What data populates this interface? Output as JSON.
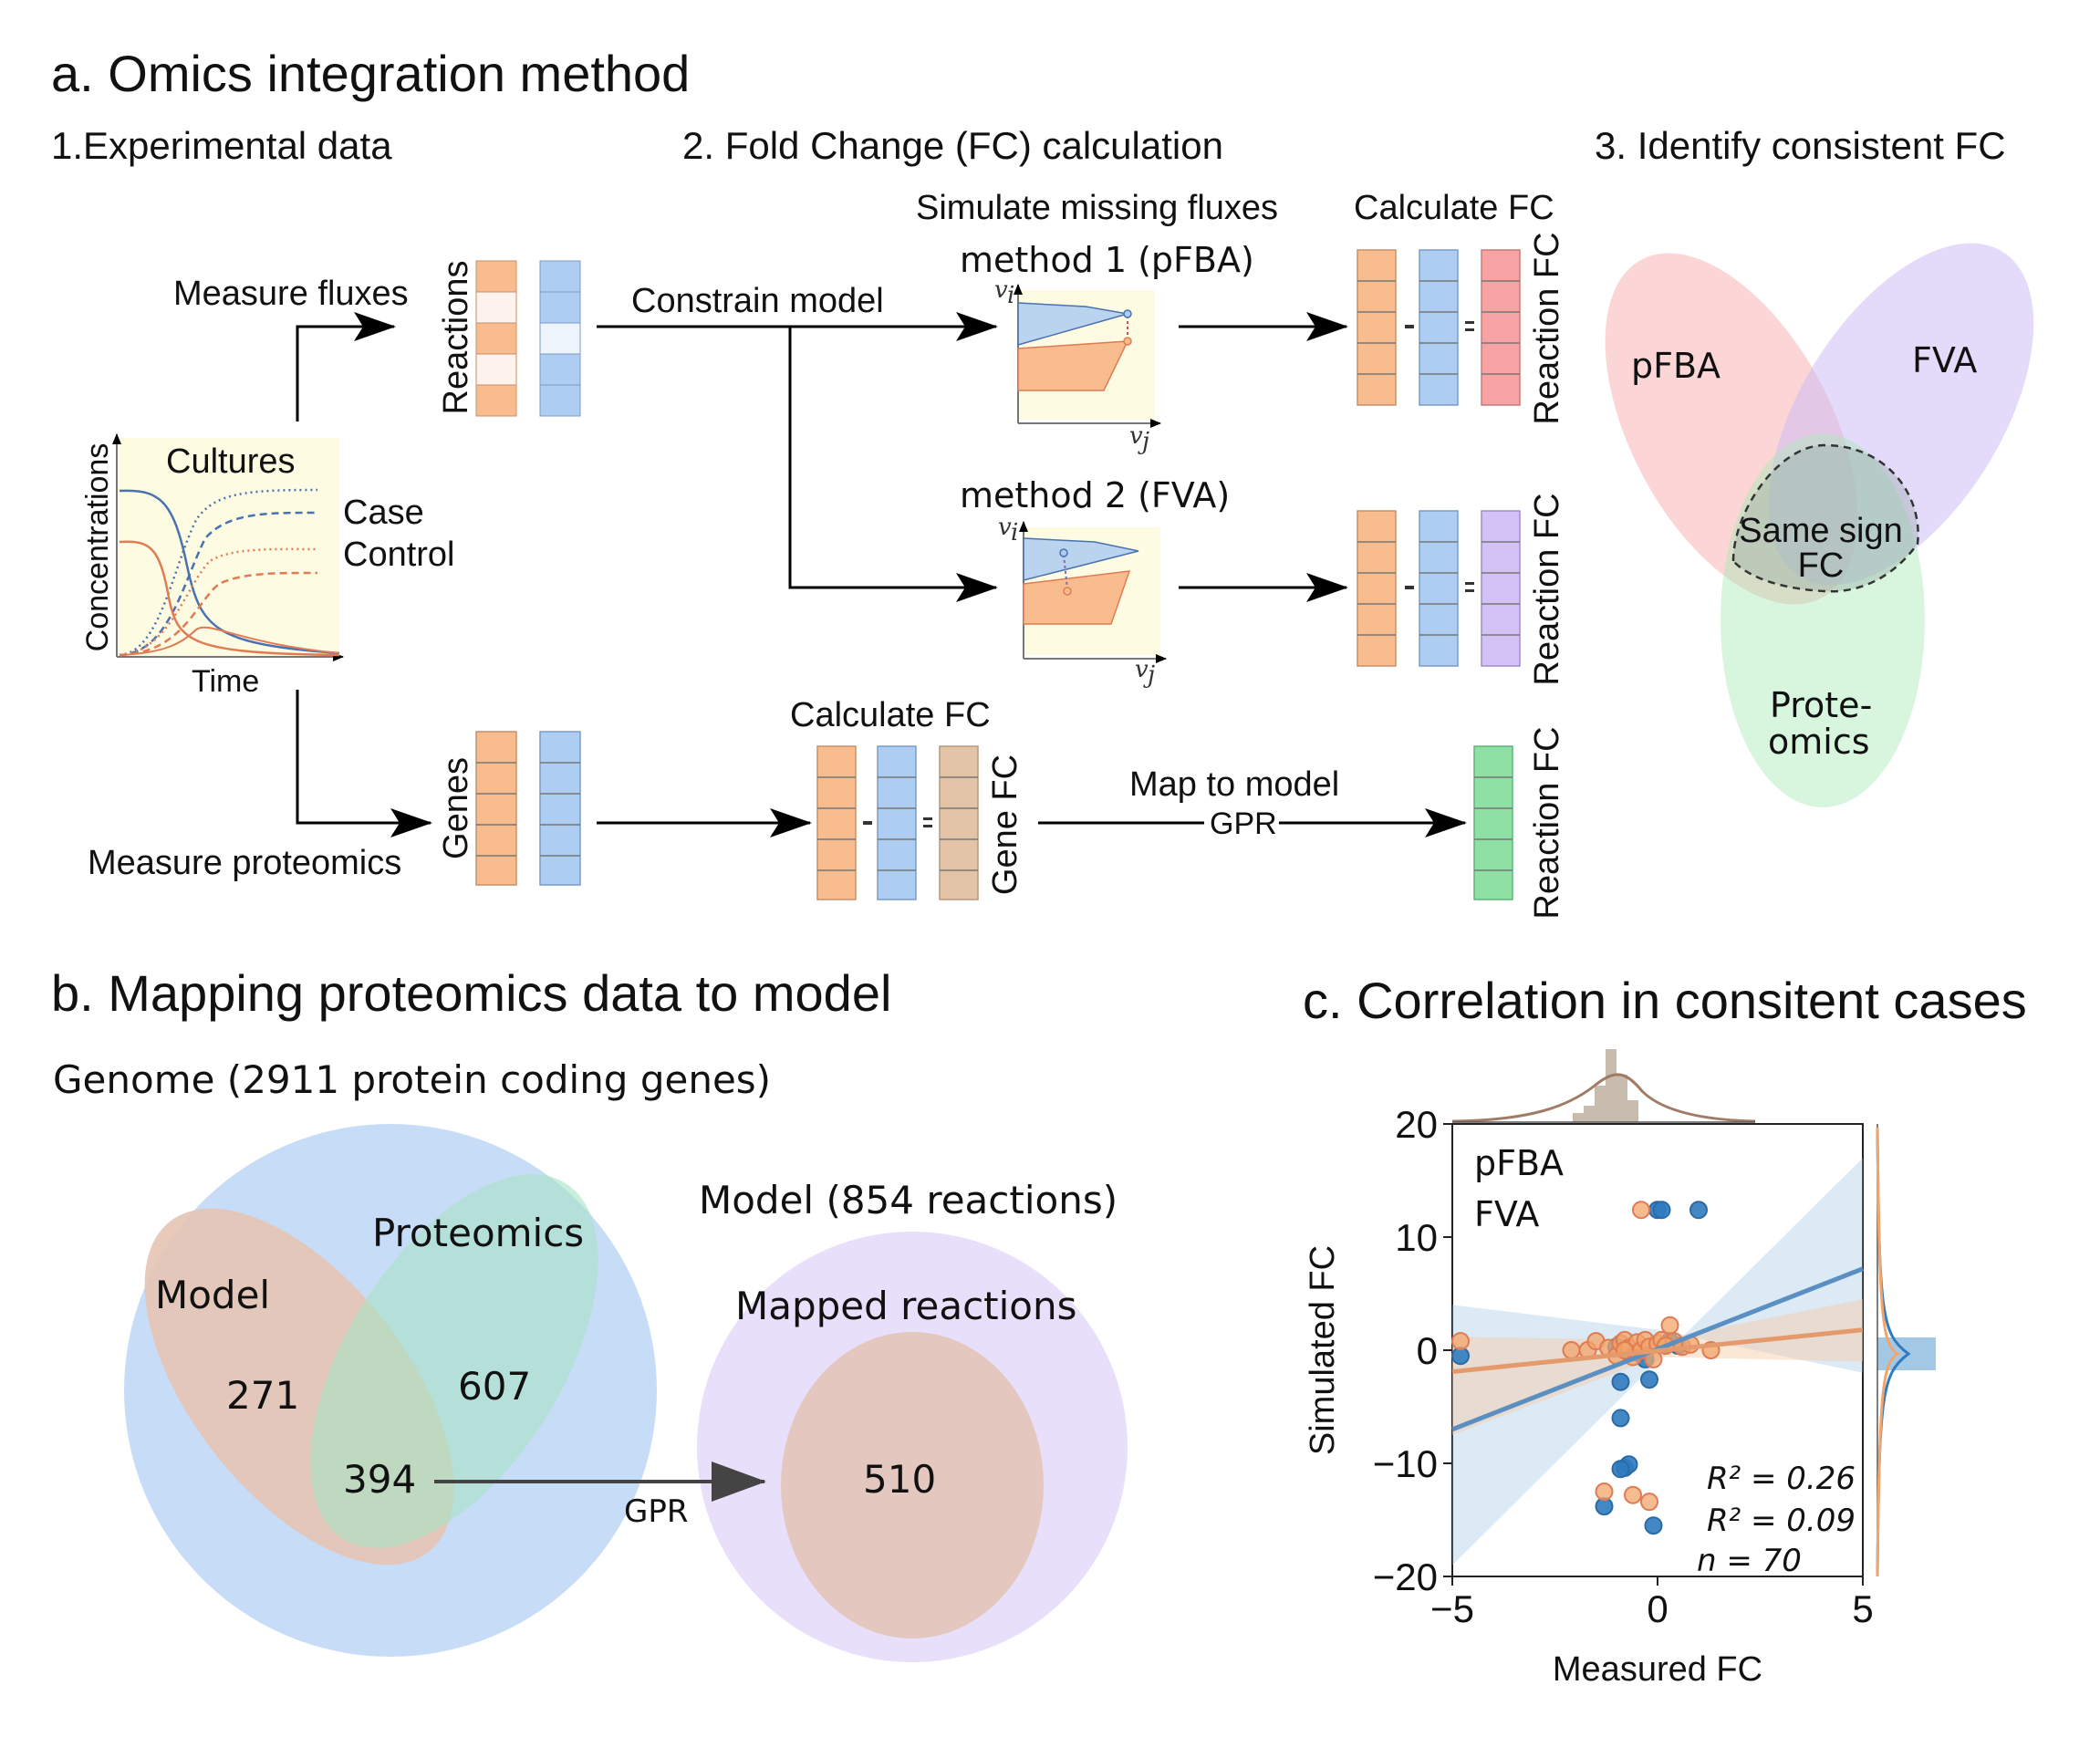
{
  "panel_a": {
    "title": "a. Omics integration method",
    "step1": "1.Experimental data",
    "step2": "2. Fold Change (FC) calculation",
    "step3": "3. Identify consistent FC",
    "measure_fluxes": "Measure fluxes",
    "measure_proteomics": "Measure proteomics",
    "constrain_model": "Constrain model",
    "simulate_missing": "Simulate missing fluxes",
    "calc_fc": "Calculate FC",
    "calc_fc_2": "Calculate FC",
    "method1": "method 1 (pFBA)",
    "method2": "method 2 (FVA)",
    "reactions": "Reactions",
    "genes": "Genes",
    "reaction_fc_1": "Reaction FC",
    "reaction_fc_2": "Reaction FC",
    "reaction_fc_3": "Reaction FC",
    "gene_fc": "Gene FC",
    "map_to_model": "Map to model",
    "gpr": "GPR",
    "cultures": "Cultures",
    "case": "Case",
    "control": "Control",
    "concentrations": "Concentrations",
    "time": "Time",
    "vi": "v",
    "vi_sub": "i",
    "vj": "v",
    "vj_sub": "j",
    "venn_pfba": "pFBA",
    "venn_fva": "FVA",
    "venn_prot_1": "Prote-",
    "venn_prot_2": "omics",
    "same_sign_1": "Same sign",
    "same_sign_2": "FC",
    "colors": {
      "case": "#e07b54",
      "control": "#4a72b0",
      "orange_box": "#f9bc8f",
      "blue_box": "#aecdf2",
      "red_box": "#f7a3a3",
      "purple_box": "#d4c2f7",
      "tan_box": "#e4c4a6",
      "green_box": "#8ee0a4",
      "panel_bg": "#fdfbe2"
    }
  },
  "panel_b": {
    "title": "b. Mapping proteomics data to model",
    "genome": "Genome (2911 protein coding genes)",
    "model_label": "Model",
    "proteomics_label": "Proteomics",
    "model_reactions": "Model (854 reactions)",
    "mapped_reactions": "Mapped reactions",
    "n_model_only": "271",
    "n_proteomics_only": "607",
    "n_overlap": "394",
    "n_mapped": "510",
    "gpr": "GPR"
  },
  "panel_c": {
    "title": "c. Correlation in consitent cases",
    "chart_data": {
      "type": "scatter",
      "xlabel": "Measured FC",
      "ylabel": "Simulated FC",
      "xlim": [
        -5,
        5
      ],
      "ylim": [
        -20,
        20
      ],
      "xticks": [
        "−5",
        "0",
        "5"
      ],
      "yticks": [
        "20",
        "10",
        "0",
        "−10",
        "−20"
      ],
      "series": [
        {
          "name": "pFBA",
          "color": "#2f7bbf",
          "r2_label": "R² = 0.26",
          "regression": {
            "x": [
              -5,
              5
            ],
            "y": [
              -7.0,
              7.2
            ]
          },
          "points": [
            [
              -4.8,
              -0.5
            ],
            [
              -1.3,
              -13.8
            ],
            [
              -0.9,
              -2.8
            ],
            [
              -0.9,
              -6.0
            ],
            [
              -0.8,
              -10.4
            ],
            [
              -0.7,
              -10.1
            ],
            [
              -0.9,
              -10.5
            ],
            [
              -0.3,
              -0.8
            ],
            [
              0.0,
              12.4
            ],
            [
              0.1,
              12.4
            ],
            [
              1.0,
              12.4
            ],
            [
              -0.2,
              -2.6
            ],
            [
              -0.1,
              -15.5
            ],
            [
              0.2,
              0.5
            ],
            [
              0.5,
              0.4
            ],
            [
              -0.5,
              -0.2
            ],
            [
              0.3,
              0.8
            ],
            [
              -1.0,
              0.3
            ]
          ]
        },
        {
          "name": "FVA",
          "color": "#f2a56b",
          "r2_label": "R² = 0.09",
          "regression": {
            "x": [
              -5,
              5
            ],
            "y": [
              -1.9,
              1.8
            ]
          },
          "points": [
            [
              -4.8,
              0.8
            ],
            [
              -2.1,
              0.0
            ],
            [
              -1.7,
              0.0
            ],
            [
              -1.5,
              0.8
            ],
            [
              -1.2,
              0.2
            ],
            [
              -1.0,
              -0.5
            ],
            [
              -0.9,
              0.6
            ],
            [
              -0.8,
              0.9
            ],
            [
              -0.7,
              0.2
            ],
            [
              -0.6,
              -0.6
            ],
            [
              -0.5,
              0.7
            ],
            [
              -0.4,
              0.0
            ],
            [
              -0.3,
              0.9
            ],
            [
              -0.2,
              0.3
            ],
            [
              -0.1,
              -0.8
            ],
            [
              0.0,
              0.6
            ],
            [
              0.1,
              0.9
            ],
            [
              0.3,
              2.2
            ],
            [
              0.4,
              0.8
            ],
            [
              0.6,
              0.3
            ],
            [
              0.8,
              0.5
            ],
            [
              1.3,
              0.0
            ],
            [
              -1.3,
              -12.5
            ],
            [
              -0.6,
              -12.8
            ],
            [
              -0.2,
              -13.4
            ],
            [
              -0.4,
              12.4
            ],
            [
              -0.8,
              0.0
            ],
            [
              0.2,
              0.4
            ]
          ]
        }
      ],
      "n_label": "n = 70",
      "legend": [
        "pFBA",
        "FVA"
      ],
      "legend_position": "top-left"
    }
  }
}
